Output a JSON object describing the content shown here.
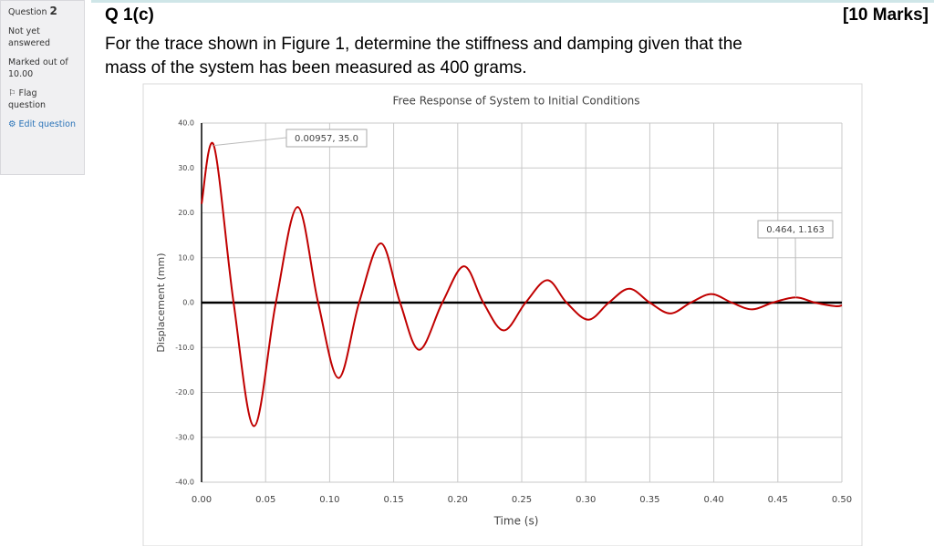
{
  "sidebar": {
    "question_label": "Question",
    "question_number": "2",
    "status": "Not yet answered",
    "marked": "Marked out of 10.00",
    "flag": "Flag question",
    "edit": "Edit question"
  },
  "question": {
    "id": "Q 1(c)",
    "marks": "[10 Marks]",
    "lines": [
      "For the trace shown in Figure 1, determine the stiffness and damping given that the",
      "mass of the system has been measured as 400 grams."
    ]
  },
  "chart_data": {
    "type": "line",
    "title": "Free Response of System to Initial Conditions",
    "x_label": "Time (s)",
    "y_label": "Displacement (mm)",
    "x": [
      0,
      0.00957,
      0.025,
      0.041,
      0.058,
      0.075,
      0.091,
      0.107,
      0.123,
      0.14,
      0.155,
      0.17,
      0.188,
      0.205,
      0.22,
      0.236,
      0.253,
      0.27,
      0.285,
      0.302,
      0.318,
      0.334,
      0.35,
      0.366,
      0.382,
      0.398,
      0.414,
      0.43,
      0.446,
      0.464,
      0.479,
      0.495,
      0.5
    ],
    "series": [
      {
        "name": "Displacement",
        "color": "#c00000",
        "values": [
          22,
          35,
          0,
          -27.5,
          0,
          21.3,
          0,
          -16.8,
          0,
          13.2,
          0,
          -10.5,
          0,
          8.1,
          0,
          -6.2,
          0,
          5.0,
          0,
          -3.8,
          0,
          3.1,
          0,
          -2.4,
          0,
          1.9,
          0,
          -1.5,
          0,
          1.163,
          0,
          -0.8,
          -0.6
        ]
      }
    ],
    "xlim": [
      0,
      0.5
    ],
    "xticks": [
      {
        "value": 0,
        "label": "0.00"
      },
      {
        "value": 0.05,
        "label": "0.05"
      },
      {
        "value": 0.1,
        "label": "0.10"
      },
      {
        "value": 0.15,
        "label": "0.15"
      },
      {
        "value": 0.2,
        "label": "0.20"
      },
      {
        "value": 0.25,
        "label": "0.25"
      },
      {
        "value": 0.3,
        "label": "0.30"
      },
      {
        "value": 0.35,
        "label": "0.35"
      },
      {
        "value": 0.4,
        "label": "0.40"
      },
      {
        "value": 0.45,
        "label": "0.45"
      },
      {
        "value": 0.5,
        "label": "0.50"
      }
    ],
    "ylim": [
      -40,
      40
    ],
    "yticks": [
      {
        "value": -40,
        "label": "-40.0"
      },
      {
        "value": -30,
        "label": "-30.0"
      },
      {
        "value": -20,
        "label": "-20.0"
      },
      {
        "value": -10,
        "label": "-10.0"
      },
      {
        "value": 0,
        "label": "0.0"
      },
      {
        "value": 10,
        "label": "10.0"
      },
      {
        "value": 20,
        "label": "20.0"
      },
      {
        "value": 30,
        "label": "30.0"
      },
      {
        "value": 40,
        "label": "40.0"
      }
    ],
    "grid": true,
    "annotations": [
      {
        "x": 0.00957,
        "y": 35.0,
        "label": "0.00957, 35.0"
      },
      {
        "x": 0.464,
        "y": 1.163,
        "label": "0.464, 1.163"
      }
    ]
  }
}
